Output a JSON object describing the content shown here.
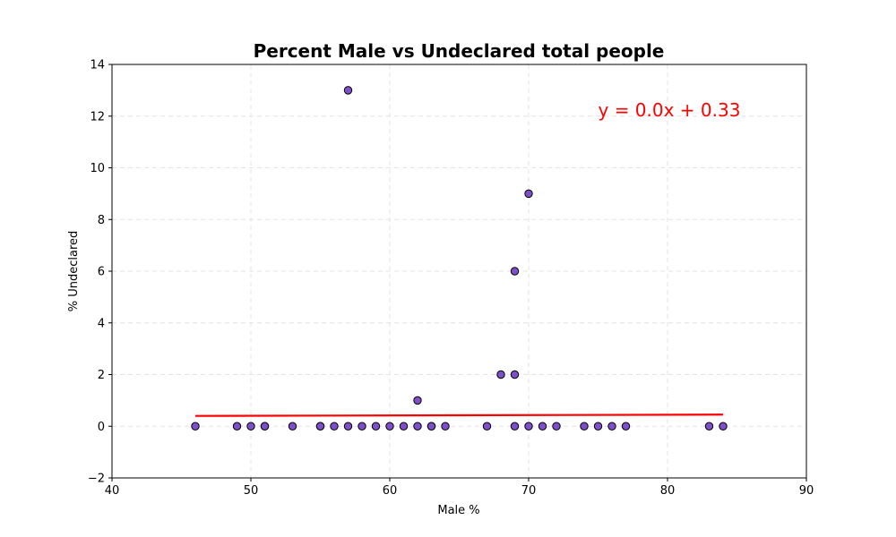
{
  "chart_data": {
    "type": "scatter",
    "title": "Percent Male vs Undeclared total people",
    "xlabel": "Male %",
    "ylabel": "% Undeclared",
    "xlim": [
      40,
      90
    ],
    "ylim": [
      -2,
      14
    ],
    "xticks": [
      "40",
      "50",
      "60",
      "70",
      "80",
      "90"
    ],
    "yticks": [
      "−2",
      "0",
      "2",
      "4",
      "6",
      "8",
      "10",
      "12",
      "14"
    ],
    "grid": true,
    "point_color": "#7e4fc9",
    "point_edge_color": "#000000",
    "line_color": "#ff0000",
    "points": [
      {
        "x": 46,
        "y": 0
      },
      {
        "x": 49,
        "y": 0
      },
      {
        "x": 50,
        "y": 0
      },
      {
        "x": 51,
        "y": 0
      },
      {
        "x": 51,
        "y": 0
      },
      {
        "x": 53,
        "y": 0
      },
      {
        "x": 55,
        "y": 0
      },
      {
        "x": 55,
        "y": 0
      },
      {
        "x": 56,
        "y": 0
      },
      {
        "x": 57,
        "y": 0
      },
      {
        "x": 57,
        "y": 13
      },
      {
        "x": 58,
        "y": 0
      },
      {
        "x": 59,
        "y": 0
      },
      {
        "x": 60,
        "y": 0
      },
      {
        "x": 61,
        "y": 0
      },
      {
        "x": 62,
        "y": 0
      },
      {
        "x": 62,
        "y": 1
      },
      {
        "x": 63,
        "y": 0
      },
      {
        "x": 63,
        "y": 0
      },
      {
        "x": 64,
        "y": 0
      },
      {
        "x": 67,
        "y": 0
      },
      {
        "x": 68,
        "y": 2
      },
      {
        "x": 69,
        "y": 0
      },
      {
        "x": 69,
        "y": 2
      },
      {
        "x": 69,
        "y": 6
      },
      {
        "x": 70,
        "y": 0
      },
      {
        "x": 70,
        "y": 9
      },
      {
        "x": 71,
        "y": 0
      },
      {
        "x": 72,
        "y": 0
      },
      {
        "x": 74,
        "y": 0
      },
      {
        "x": 75,
        "y": 0
      },
      {
        "x": 76,
        "y": 0
      },
      {
        "x": 77,
        "y": 0
      },
      {
        "x": 83,
        "y": 0
      },
      {
        "x": 84,
        "y": 0
      }
    ],
    "regression_line": {
      "x": [
        46,
        84
      ],
      "y": [
        0.4,
        0.45
      ]
    },
    "annotation": {
      "text": "y = 0.0x + 0.33",
      "color": "#ff0000",
      "x": 75,
      "y": 12
    }
  }
}
